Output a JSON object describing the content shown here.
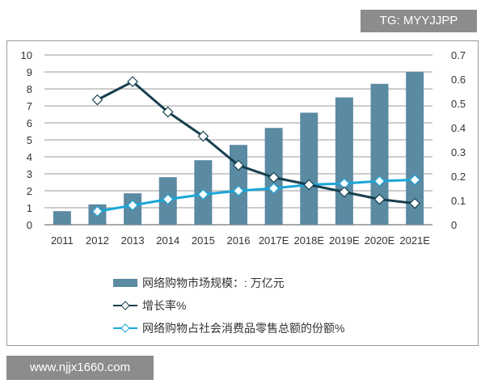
{
  "watermark_top": "TG: MYYJJPP",
  "watermark_bottom": "www.njjx1660.com",
  "chart_data": {
    "type": "bar+line",
    "categories": [
      "2011",
      "2012",
      "2013",
      "2014",
      "2015",
      "2016",
      "2017E",
      "2018E",
      "2019E",
      "2020E",
      "2021E"
    ],
    "y_left": {
      "range": [
        0,
        10
      ],
      "ticks": [
        "0",
        "1",
        "2",
        "3",
        "4",
        "5",
        "6",
        "7",
        "8",
        "9",
        "10"
      ]
    },
    "y_right": {
      "range": [
        0,
        0.7
      ],
      "ticks": [
        "0",
        "0.1",
        "0.2",
        "0.3",
        "0.4",
        "0.5",
        "0.6",
        "0.7"
      ]
    },
    "grid": true,
    "legend_position": "bottom",
    "series": [
      {
        "name": "网络购物市场规模：: 万亿元",
        "type": "bar",
        "axis": "left",
        "color": "#5b8aa3",
        "values": [
          0.8,
          1.2,
          1.85,
          2.8,
          3.8,
          4.7,
          5.7,
          6.6,
          7.5,
          8.3,
          9.0
        ]
      },
      {
        "name": "增长率%",
        "type": "line",
        "axis": "right",
        "color": "#17404f",
        "values": [
          null,
          0.515,
          0.59,
          0.465,
          0.365,
          0.245,
          0.195,
          0.165,
          0.135,
          0.105,
          0.088
        ]
      },
      {
        "name": "网络购物占社会消费品零售总额的份额%",
        "type": "line",
        "axis": "right",
        "color": "#1ba6d8",
        "values": [
          null,
          0.055,
          0.08,
          0.105,
          0.125,
          0.14,
          0.15,
          0.165,
          0.17,
          0.18,
          0.185
        ]
      }
    ]
  }
}
